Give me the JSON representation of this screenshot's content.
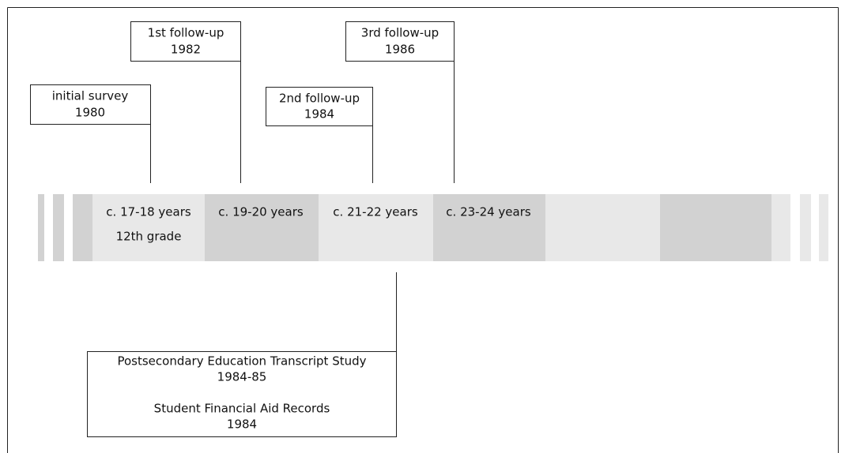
{
  "surveys": [
    {
      "title": "initial survey",
      "year": "1980"
    },
    {
      "title": "1st follow-up",
      "year": "1982"
    },
    {
      "title": "2nd follow-up",
      "year": "1984"
    },
    {
      "title": "3rd follow-up",
      "year": "1986"
    }
  ],
  "periods": [
    {
      "label": "c. 17-18 years",
      "sublabel": "12th grade"
    },
    {
      "label": "c. 19-20 years"
    },
    {
      "label": "c. 21-22 years"
    },
    {
      "label": "c. 23-24 years"
    }
  ],
  "records": {
    "study": "Postsecondary Education Transcript Study",
    "study_years": "1984-85",
    "aid": "Student Financial Aid Records",
    "aid_year": "1984"
  }
}
